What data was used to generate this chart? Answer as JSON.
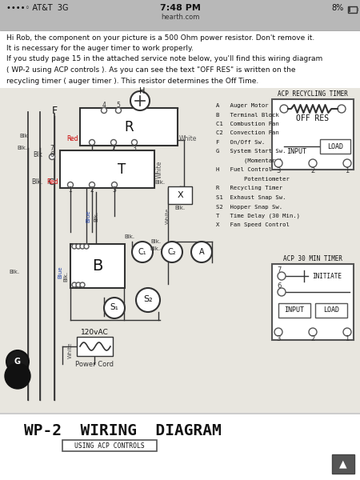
{
  "bg_color": "#f5f5f5",
  "status_bar_bg": "#c8c8c8",
  "status_bar_text": "7:48 PM",
  "status_bar_sub": "hearth.com",
  "status_bar_left": "••••◦ AT&T  3G",
  "status_bar_right": "8%",
  "intro_lines": [
    "Hi Rob, the component on your picture is a 500 Ohm power resistor. Don't remove it.",
    "It is necessary for the auger timer to work properly.",
    "If you study page 15 in the attached service note below, you'll find this wiring diagram",
    "( WP-2 using ACP controls ). As you can see the text \"OFF RES\" is written on the",
    "recycling timer ( auger timer ). This resistor determines the Off Time."
  ],
  "legend_lines": [
    "A   Auger Motor",
    "B   Terminal Block",
    "C1  Combustion Fan",
    "C2  Convection Fan",
    "F   On/Off Sw.",
    "G   System Start Sw.",
    "        (Momentary)",
    "H   Fuel Control",
    "        Potentiometer",
    "R   Recycling Timer",
    "S1  Exhaust Snap Sw.",
    "S2  Hopper Snap Sw.",
    "T   Time Delay (30 Min.)",
    "X   Fan Speed Control"
  ],
  "acp_recycling_label": "ACP RECYCLING TIMER",
  "off_res_label": "OFF RES",
  "input_label": "INPUT",
  "load_label": "LOAD",
  "acp_30min_label": "ACP 30 MIN TIMER",
  "initiate_label": "INITIATE",
  "title_main": "WP-2  WIRING  DIAGRAM",
  "title_sub": "USING ACP CONTROLS"
}
